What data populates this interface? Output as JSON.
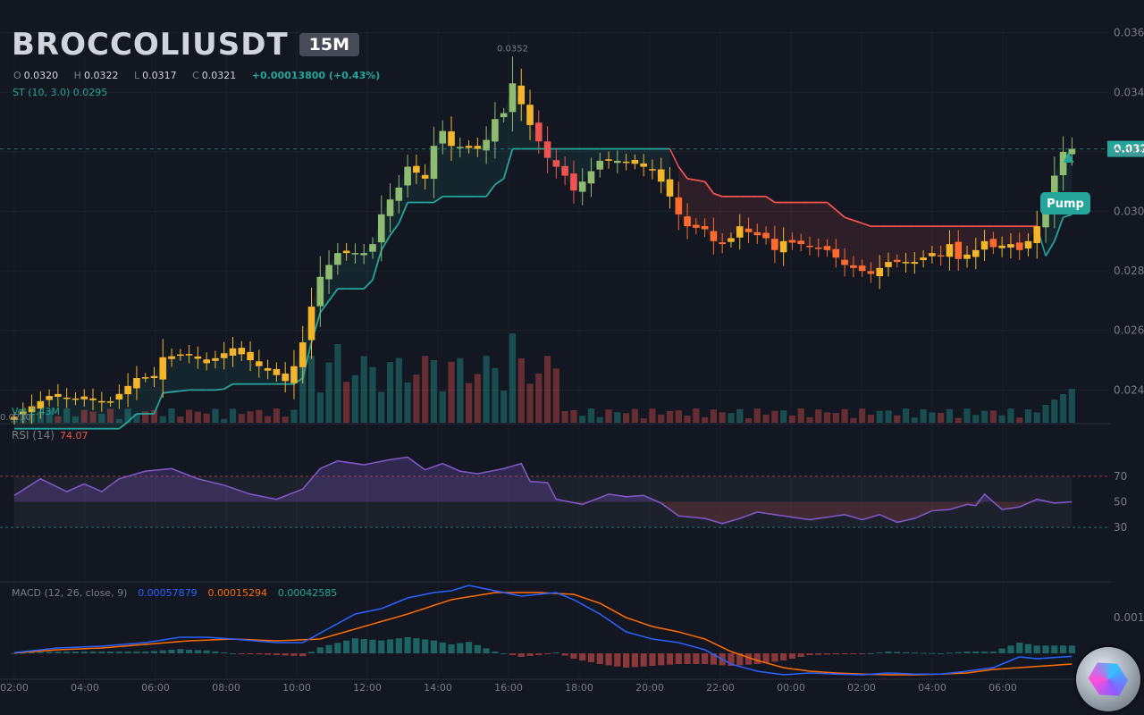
{
  "symbol": "BROCCOLIUSDT",
  "timeframe": "15M",
  "ohlc": {
    "o_label": "O",
    "o": "0.0320",
    "h_label": "H",
    "h": "0.0322",
    "l_label": "L",
    "l": "0.0317",
    "c_label": "C",
    "c": "0.0321",
    "change": "+0.00013800 (+0.43%)"
  },
  "supertrend_label": "ST (10, 3.0)  0.0295",
  "volume_label": "Vol 2.43M",
  "rsi": {
    "label": "RSI (14)",
    "value": "74.07"
  },
  "macd": {
    "label": "MACD (12, 26, close, 9)",
    "macd": "0.00057879",
    "signal": "0.00015294",
    "hist": "0.00042585"
  },
  "pump_label": "Pump",
  "last_price_label": "0.032",
  "peak_label": "0.0352",
  "low_label": "0.0230",
  "colors": {
    "background": "#131722",
    "supertrend_up": "#26a69a",
    "supertrend_down": "#ef5350",
    "rsi": "#7e57c2",
    "macd": "#2962ff",
    "signal": "#ff6d00",
    "candle_up": "#8fbc70",
    "candle_mid": "#f5b52a",
    "candle_down": "#ef5350"
  },
  "chart_data": [
    {
      "type": "candlestick",
      "title": "BROCCOLIUSDT 15M",
      "price_axis": [
        "0.036",
        "0.034",
        "0.032",
        "0.030",
        "0.028",
        "0.026",
        "0.024"
      ],
      "ylim": [
        0.0229,
        0.0362
      ],
      "time_axis": [
        "02:00",
        "04:00",
        "06:00",
        "08:00",
        "10:00",
        "12:00",
        "14:00",
        "16:00",
        "18:00",
        "20:00",
        "22:00",
        "00:00",
        "02:00",
        "04:00",
        "06:00"
      ],
      "close_waypoints": [
        [
          0,
          0.0231
        ],
        [
          4,
          0.0238
        ],
        [
          11,
          0.0236
        ],
        [
          14,
          0.0244
        ],
        [
          16,
          0.0244
        ],
        [
          17,
          0.0251
        ],
        [
          20,
          0.0252
        ],
        [
          22,
          0.0249
        ],
        [
          25,
          0.0254
        ],
        [
          28,
          0.0248
        ],
        [
          30,
          0.0245
        ],
        [
          31,
          0.0243
        ],
        [
          32,
          0.0248
        ],
        [
          33,
          0.0256
        ],
        [
          34,
          0.0268
        ],
        [
          35,
          0.0278
        ],
        [
          37,
          0.0286
        ],
        [
          40,
          0.0286
        ],
        [
          41,
          0.0289
        ],
        [
          42,
          0.0299
        ],
        [
          43,
          0.0304
        ],
        [
          44,
          0.0308
        ],
        [
          45,
          0.0315
        ],
        [
          47,
          0.0311
        ],
        [
          48,
          0.0322
        ],
        [
          49,
          0.0327
        ],
        [
          50,
          0.0322
        ],
        [
          53,
          0.0321
        ],
        [
          54,
          0.0324
        ],
        [
          55,
          0.0331
        ],
        [
          56,
          0.0333
        ],
        [
          57,
          0.0343
        ],
        [
          58,
          0.0336
        ],
        [
          59,
          0.0329
        ],
        [
          61,
          0.0318
        ],
        [
          63,
          0.0312
        ],
        [
          64,
          0.0307
        ],
        [
          65,
          0.031
        ],
        [
          67,
          0.0317
        ],
        [
          69,
          0.0317
        ],
        [
          71,
          0.0316
        ],
        [
          73,
          0.0314
        ],
        [
          74,
          0.031
        ],
        [
          75,
          0.0305
        ],
        [
          76,
          0.0299
        ],
        [
          77,
          0.0295
        ],
        [
          79,
          0.0294
        ],
        [
          80,
          0.029
        ],
        [
          81,
          0.0289
        ],
        [
          82,
          0.0291
        ],
        [
          83,
          0.0295
        ],
        [
          84,
          0.0293
        ],
        [
          86,
          0.0291
        ],
        [
          87,
          0.0287
        ],
        [
          88,
          0.029
        ],
        [
          90,
          0.0289
        ],
        [
          93,
          0.0287
        ],
        [
          95,
          0.0282
        ],
        [
          98,
          0.0279
        ],
        [
          100,
          0.0283
        ],
        [
          103,
          0.0283
        ],
        [
          105,
          0.0286
        ],
        [
          106,
          0.0285
        ],
        [
          107,
          0.0289
        ],
        [
          108,
          0.0284
        ],
        [
          110,
          0.0287
        ],
        [
          111,
          0.029
        ],
        [
          112,
          0.0288
        ],
        [
          114,
          0.0289
        ],
        [
          115,
          0.0287
        ],
        [
          116,
          0.029
        ],
        [
          118,
          0.03
        ],
        [
          119,
          0.0312
        ],
        [
          120,
          0.032
        ],
        [
          121,
          0.0321
        ]
      ]
    },
    {
      "type": "line",
      "title": "RSI (14)",
      "levels": [
        70,
        50,
        30
      ],
      "ylim": [
        0,
        100
      ],
      "value_waypoints": [
        [
          0,
          55
        ],
        [
          3,
          68
        ],
        [
          6,
          58
        ],
        [
          8,
          64
        ],
        [
          10,
          58
        ],
        [
          12,
          68
        ],
        [
          15,
          74
        ],
        [
          18,
          76
        ],
        [
          21,
          68
        ],
        [
          24,
          63
        ],
        [
          27,
          56
        ],
        [
          30,
          52
        ],
        [
          33,
          60
        ],
        [
          35,
          76
        ],
        [
          37,
          82
        ],
        [
          40,
          79
        ],
        [
          43,
          83
        ],
        [
          45,
          85
        ],
        [
          47,
          75
        ],
        [
          49,
          80
        ],
        [
          51,
          74
        ],
        [
          53,
          72
        ],
        [
          56,
          76
        ],
        [
          58,
          80
        ],
        [
          59,
          66
        ],
        [
          61,
          65
        ],
        [
          62,
          52
        ],
        [
          65,
          48
        ],
        [
          68,
          56
        ],
        [
          70,
          54
        ],
        [
          72,
          55
        ],
        [
          74,
          49
        ],
        [
          76,
          39
        ],
        [
          79,
          37
        ],
        [
          81,
          33
        ],
        [
          83,
          37
        ],
        [
          85,
          42
        ],
        [
          87,
          40
        ],
        [
          89,
          38
        ],
        [
          91,
          36
        ],
        [
          93,
          38
        ],
        [
          95,
          40
        ],
        [
          97,
          36
        ],
        [
          99,
          40
        ],
        [
          101,
          34
        ],
        [
          103,
          37
        ],
        [
          105,
          43
        ],
        [
          107,
          44
        ],
        [
          109,
          48
        ],
        [
          110,
          47
        ],
        [
          111,
          56
        ],
        [
          113,
          44
        ],
        [
          115,
          46
        ],
        [
          117,
          52
        ],
        [
          119,
          49
        ],
        [
          121,
          50
        ],
        [
          123,
          55
        ],
        [
          125,
          60
        ],
        [
          126,
          70
        ],
        [
          127,
          74
        ],
        [
          128,
          74
        ]
      ]
    },
    {
      "type": "line",
      "title": "MACD (12, 26, close, 9)",
      "tick_label": "0.001",
      "macd_waypoints": [
        [
          0,
          2e-05
        ],
        [
          5,
          0.00015
        ],
        [
          10,
          0.0002
        ],
        [
          15,
          0.0003
        ],
        [
          19,
          0.00045
        ],
        [
          22,
          0.00045
        ],
        [
          25,
          0.0004
        ],
        [
          30,
          0.0003
        ],
        [
          33,
          0.0003
        ],
        [
          36,
          0.0007
        ],
        [
          39,
          0.0011
        ],
        [
          42,
          0.00125
        ],
        [
          45,
          0.00155
        ],
        [
          48,
          0.0017
        ],
        [
          50,
          0.00175
        ],
        [
          52,
          0.0019
        ],
        [
          55,
          0.00175
        ],
        [
          58,
          0.0016
        ],
        [
          62,
          0.0017
        ],
        [
          64,
          0.0015
        ],
        [
          67,
          0.0011
        ],
        [
          70,
          0.0006
        ],
        [
          73,
          0.0004
        ],
        [
          76,
          0.0003
        ],
        [
          79,
          0.0001
        ],
        [
          82,
          -0.0003
        ],
        [
          85,
          -0.0005
        ],
        [
          88,
          -0.0006
        ],
        [
          91,
          -0.00055
        ],
        [
          94,
          -0.00058
        ],
        [
          97,
          -0.0006
        ],
        [
          100,
          -0.00055
        ],
        [
          103,
          -0.00058
        ],
        [
          106,
          -0.00058
        ],
        [
          109,
          -0.0005
        ],
        [
          112,
          -0.0004
        ],
        [
          115,
          -0.0001
        ],
        [
          117,
          -0.00015
        ],
        [
          120,
          -0.0001
        ],
        [
          123,
          -5e-05
        ],
        [
          125,
          0.0001
        ],
        [
          127,
          0.0004
        ],
        [
          128,
          0.00058
        ]
      ],
      "signal_waypoints": [
        [
          0,
          1e-05
        ],
        [
          5,
          0.0001
        ],
        [
          10,
          0.00015
        ],
        [
          15,
          0.00025
        ],
        [
          20,
          0.00035
        ],
        [
          25,
          0.0004
        ],
        [
          30,
          0.00035
        ],
        [
          35,
          0.0004
        ],
        [
          40,
          0.00075
        ],
        [
          45,
          0.0011
        ],
        [
          50,
          0.0015
        ],
        [
          55,
          0.0017
        ],
        [
          60,
          0.0017
        ],
        [
          64,
          0.00165
        ],
        [
          67,
          0.0014
        ],
        [
          70,
          0.001
        ],
        [
          73,
          0.00075
        ],
        [
          76,
          0.0006
        ],
        [
          79,
          0.0004
        ],
        [
          82,
          5e-05
        ],
        [
          85,
          -0.0002
        ],
        [
          88,
          -0.0004
        ],
        [
          91,
          -0.0005
        ],
        [
          94,
          -0.00055
        ],
        [
          97,
          -0.00058
        ],
        [
          100,
          -0.0006
        ],
        [
          103,
          -0.0006
        ],
        [
          106,
          -0.00058
        ],
        [
          109,
          -0.00055
        ],
        [
          112,
          -0.00045
        ],
        [
          115,
          -0.0004
        ],
        [
          118,
          -0.00035
        ],
        [
          121,
          -0.0003
        ],
        [
          124,
          -0.0002
        ],
        [
          126,
          -0.0001
        ],
        [
          127,
          5e-05
        ],
        [
          128,
          0.00015
        ]
      ]
    }
  ]
}
